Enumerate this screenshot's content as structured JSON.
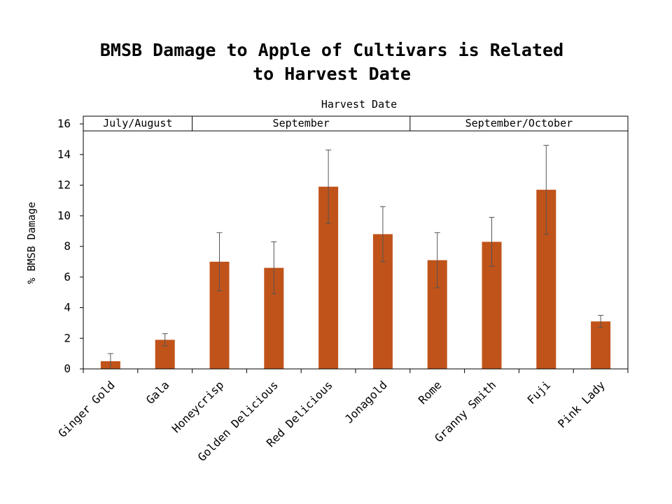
{
  "chart_data": {
    "type": "bar",
    "title_lines": [
      "BMSB Damage to Apple of Cultivars is Related",
      "to Harvest Date"
    ],
    "ylabel": "% BMSB Damage",
    "period_axis_label": "Harvest Date",
    "ylim": [
      0,
      16
    ],
    "yticks": [
      0,
      2,
      4,
      6,
      8,
      10,
      12,
      14,
      16
    ],
    "grid": false,
    "bar_color": "#C0531A",
    "errorbar_color": "#555555",
    "categories": [
      "Ginger Gold",
      "Gala",
      "Honeycrisp",
      "Golden Delicious",
      "Red Delicious",
      "Jonagold",
      "Rome",
      "Granny Smith",
      "Fuji",
      "Pink Lady"
    ],
    "values": [
      0.5,
      1.9,
      7.0,
      6.6,
      11.9,
      8.8,
      7.1,
      8.3,
      11.7,
      3.1
    ],
    "error_low": [
      0.0,
      1.5,
      5.1,
      4.9,
      9.5,
      7.0,
      5.3,
      6.7,
      8.8,
      2.7
    ],
    "error_high": [
      1.0,
      2.3,
      8.9,
      8.3,
      14.3,
      10.6,
      8.9,
      9.9,
      14.6,
      3.5
    ],
    "harvest_periods": [
      {
        "label": "July/August",
        "from": 0,
        "to": 1
      },
      {
        "label": "September",
        "from": 2,
        "to": 5
      },
      {
        "label": "September/October",
        "from": 6,
        "to": 9
      }
    ]
  }
}
